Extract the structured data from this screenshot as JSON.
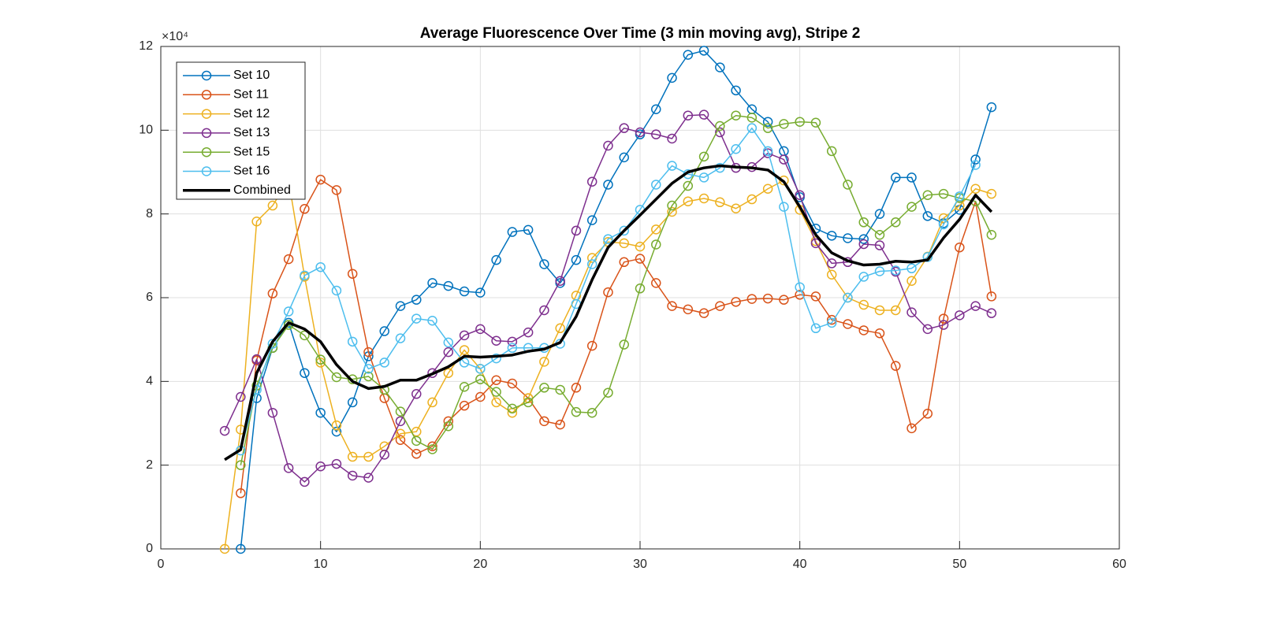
{
  "chart_data": {
    "type": "line",
    "title": "Average Fluorescence Over Time (3 min moving avg), Stripe 2",
    "y_multiplier": "×10⁴",
    "x": [
      4,
      5,
      6,
      7,
      8,
      9,
      10,
      11,
      12,
      13,
      14,
      15,
      16,
      17,
      18,
      19,
      20,
      21,
      22,
      23,
      24,
      25,
      26,
      27,
      28,
      29,
      30,
      31,
      32,
      33,
      34,
      35,
      36,
      37,
      38,
      39,
      40,
      41,
      42,
      43,
      44,
      45,
      46,
      47,
      48,
      49,
      50,
      51,
      52
    ],
    "xlim": [
      0,
      60
    ],
    "xticks": [
      0,
      10,
      20,
      30,
      40,
      50,
      60
    ],
    "ylim": [
      0,
      12
    ],
    "yticks": [
      0,
      2,
      4,
      6,
      8,
      10,
      12
    ],
    "grid": true,
    "legend": "upper-left",
    "series": [
      {
        "name": "Set 10",
        "color": "#0072bd",
        "marker": "circle",
        "values": [
          null,
          0,
          3.6,
          4.8,
          5.4,
          4.2,
          3.25,
          2.8,
          3.5,
          4.6,
          5.2,
          5.8,
          5.95,
          6.35,
          6.28,
          6.15,
          6.12,
          6.9,
          7.57,
          7.62,
          6.8,
          6.35,
          6.9,
          7.85,
          8.7,
          9.35,
          9.9,
          10.5,
          11.25,
          11.8,
          11.9,
          11.5,
          10.95,
          10.5,
          10.2,
          9.5,
          8.4,
          7.65,
          7.48,
          7.42,
          7.4,
          8.0,
          8.87,
          8.87,
          7.95,
          7.78,
          8.1,
          9.3,
          10.55
        ]
      },
      {
        "name": "Set 11",
        "color": "#d95319",
        "marker": "circle",
        "values": [
          null,
          1.33,
          4.5,
          6.1,
          6.92,
          8.12,
          8.82,
          8.57,
          6.57,
          4.7,
          3.6,
          2.6,
          2.27,
          2.45,
          3.05,
          3.42,
          3.63,
          4.03,
          3.95,
          3.6,
          3.05,
          2.97,
          3.85,
          4.85,
          6.13,
          6.85,
          6.93,
          6.35,
          5.8,
          5.72,
          5.63,
          5.8,
          5.9,
          5.97,
          5.98,
          5.95,
          6.07,
          6.03,
          5.47,
          5.37,
          5.22,
          5.15,
          4.37,
          2.88,
          3.23,
          5.5,
          7.2,
          8.3,
          6.03
        ]
      },
      {
        "name": "Set 12",
        "color": "#edb120",
        "marker": "circle",
        "values": [
          0,
          2.85,
          7.82,
          8.2,
          8.8,
          6.5,
          4.45,
          2.95,
          2.2,
          2.2,
          2.45,
          2.75,
          2.8,
          3.5,
          4.2,
          4.75,
          4.3,
          3.5,
          3.25,
          3.6,
          4.47,
          5.27,
          6.05,
          6.95,
          7.33,
          7.3,
          7.22,
          7.63,
          8.05,
          8.3,
          8.37,
          8.28,
          8.13,
          8.35,
          8.6,
          8.8,
          8.1,
          7.35,
          6.55,
          6.0,
          5.83,
          5.7,
          5.7,
          6.4,
          6.98,
          7.9,
          8.2,
          8.6,
          8.48
        ]
      },
      {
        "name": "Set 13",
        "color": "#7e2f8e",
        "marker": "circle",
        "values": [
          2.82,
          3.63,
          4.53,
          3.25,
          1.93,
          1.6,
          1.97,
          2.03,
          1.75,
          1.7,
          2.25,
          3.05,
          3.7,
          4.2,
          4.7,
          5.1,
          5.25,
          4.97,
          4.95,
          5.17,
          5.7,
          6.4,
          7.6,
          8.77,
          9.63,
          10.05,
          9.95,
          9.9,
          9.8,
          10.35,
          10.37,
          9.95,
          9.1,
          9.12,
          9.45,
          9.3,
          8.45,
          7.3,
          6.82,
          6.85,
          7.28,
          7.25,
          6.62,
          5.65,
          5.25,
          5.35,
          5.58,
          5.8,
          5.63
        ]
      },
      {
        "name": "Set 15",
        "color": "#77ac30",
        "marker": "circle",
        "values": [
          null,
          2.0,
          3.9,
          4.8,
          5.35,
          5.1,
          4.52,
          4.1,
          4.05,
          4.12,
          3.8,
          3.28,
          2.58,
          2.38,
          2.93,
          3.87,
          4.05,
          3.75,
          3.35,
          3.5,
          3.85,
          3.8,
          3.27,
          3.25,
          3.73,
          4.88,
          6.22,
          7.27,
          8.2,
          8.67,
          9.37,
          10.1,
          10.35,
          10.3,
          10.05,
          10.15,
          10.2,
          10.18,
          9.5,
          8.7,
          7.8,
          7.5,
          7.8,
          8.17,
          8.45,
          8.48,
          8.38,
          8.3,
          7.5
        ]
      },
      {
        "name": "Set 16",
        "color": "#4dbeee",
        "marker": "circle",
        "values": [
          null,
          2.35,
          3.8,
          4.9,
          5.67,
          6.53,
          6.73,
          6.17,
          4.95,
          4.3,
          4.45,
          5.03,
          5.5,
          5.45,
          4.93,
          4.45,
          4.3,
          4.55,
          4.8,
          4.8,
          4.8,
          4.9,
          5.85,
          6.8,
          7.4,
          7.6,
          8.1,
          8.7,
          9.15,
          8.95,
          8.87,
          9.1,
          9.55,
          10.05,
          9.5,
          8.17,
          6.25,
          5.27,
          5.4,
          6.0,
          6.5,
          6.63,
          6.65,
          6.7,
          6.97,
          7.75,
          8.42,
          9.17,
          null
        ]
      },
      {
        "name": "Combined",
        "color": "#000000",
        "linewidth": 3.5,
        "values": [
          2.13,
          2.37,
          4.2,
          4.95,
          5.4,
          5.25,
          4.95,
          4.4,
          4.0,
          3.83,
          3.88,
          4.03,
          4.03,
          4.18,
          4.35,
          4.6,
          4.58,
          4.6,
          4.63,
          4.72,
          4.77,
          4.93,
          5.55,
          6.43,
          7.2,
          7.6,
          7.97,
          8.35,
          8.73,
          9.0,
          9.1,
          9.15,
          9.12,
          9.1,
          9.05,
          8.77,
          8.17,
          7.5,
          7.07,
          6.88,
          6.78,
          6.8,
          6.87,
          6.85,
          6.9,
          7.43,
          7.87,
          8.45,
          8.05
        ]
      }
    ]
  }
}
